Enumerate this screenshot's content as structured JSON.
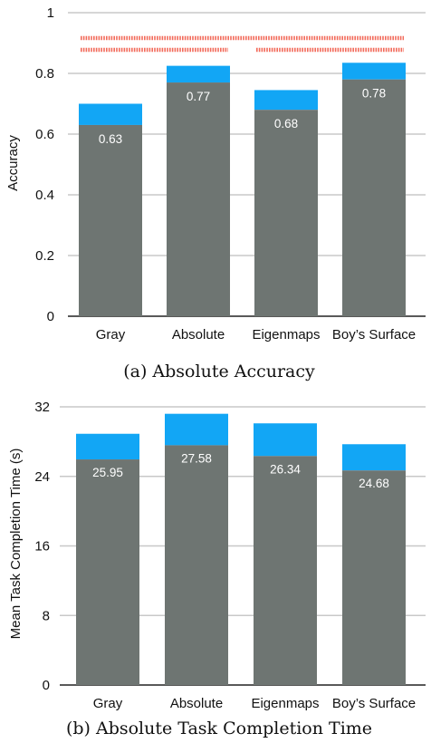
{
  "colors": {
    "mean_bar": "#6e7572",
    "error_cap": "#12a6f5",
    "grid": "#c8c8c8",
    "significance": "#f26b5b"
  },
  "chart_data": [
    {
      "type": "bar",
      "caption": "(a) Absolute Accuracy",
      "ylabel": "Accuracy",
      "categories": [
        "Gray",
        "Absolute",
        "Eigenmaps",
        "Boy’s Surface"
      ],
      "values": [
        0.63,
        0.77,
        0.68,
        0.78
      ],
      "error_upper": [
        0.7,
        0.825,
        0.745,
        0.835
      ],
      "value_labels": [
        "0.63",
        "0.77",
        "0.68",
        "0.78"
      ],
      "ylim": [
        0,
        1
      ],
      "yticks": [
        0,
        0.2,
        0.4,
        0.6,
        0.8,
        1
      ],
      "ytick_labels": [
        "0",
        "0.2",
        "0.4",
        "0.6",
        "0.8",
        "1"
      ],
      "grid": true,
      "significance_brackets": [
        {
          "from": "Gray",
          "to": "Boy’s Surface"
        },
        {
          "from": "Gray",
          "to": "Absolute"
        },
        {
          "from": "Eigenmaps",
          "to": "Boy’s Surface"
        }
      ]
    },
    {
      "type": "bar",
      "caption": "(b) Absolute Task Completion Time",
      "ylabel": "Mean Task Completion Time (s)",
      "categories": [
        "Gray",
        "Absolute",
        "Eigenmaps",
        "Boy’s Surface"
      ],
      "values": [
        25.95,
        27.58,
        26.34,
        24.68
      ],
      "error_upper": [
        28.9,
        31.2,
        30.1,
        27.7
      ],
      "value_labels": [
        "25.95",
        "27.58",
        "26.34",
        "24.68"
      ],
      "ylim": [
        0,
        32
      ],
      "yticks": [
        0,
        8,
        16,
        24,
        32
      ],
      "ytick_labels": [
        "0",
        "8",
        "16",
        "24",
        "32"
      ],
      "grid": true
    }
  ]
}
